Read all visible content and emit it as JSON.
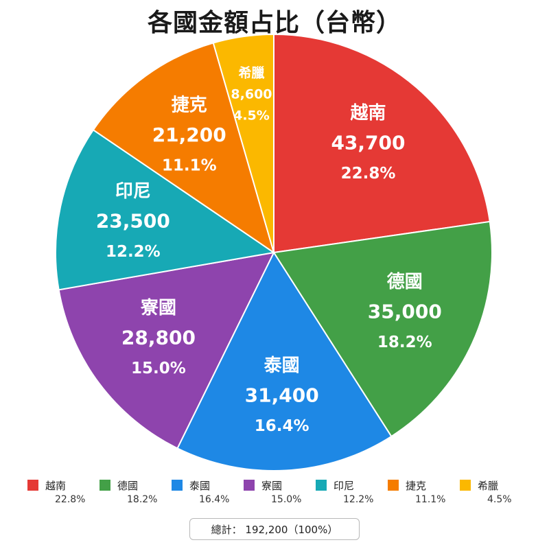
{
  "chart_data": {
    "type": "pie",
    "title": "各國金額占比（台幣）",
    "categories": [
      "越南",
      "德國",
      "泰國",
      "寮國",
      "印尼",
      "捷克",
      "希臘"
    ],
    "values": [
      43700,
      35000,
      31400,
      28800,
      23500,
      21200,
      8600
    ],
    "value_labels": [
      "43,700",
      "35,000",
      "31,400",
      "28,800",
      "23,500",
      "21,200",
      "8,600"
    ],
    "percent_labels": [
      "22.8%",
      "18.2%",
      "16.4%",
      "15.0%",
      "12.2%",
      "11.1%",
      "4.5%"
    ],
    "colors": [
      "#e53935",
      "#43a047",
      "#1e88e5",
      "#8e44ad",
      "#17a9b5",
      "#f57c00",
      "#fbb800"
    ],
    "legend_placement": "bottom",
    "total_label": "總計： 192,200（100%）"
  }
}
